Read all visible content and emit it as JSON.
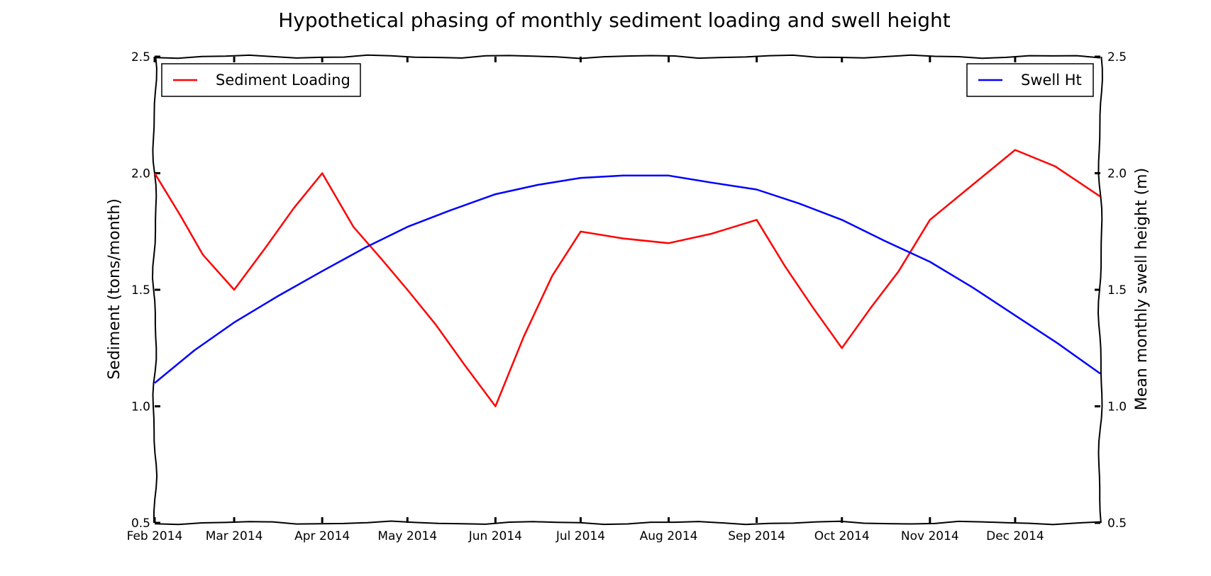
{
  "chart_data": {
    "type": "line",
    "title": "Hypothetical phasing of monthly sediment loading and swell height",
    "ylabel_left": "Sediment (tons/month)",
    "ylabel_right": "Mean monthly swell height (m)",
    "xlim": [
      "2014-02-01",
      "2014-12-31"
    ],
    "ylim": [
      0.5,
      2.5
    ],
    "y_ticks": [
      "0.5",
      "1.0",
      "1.5",
      "2.0",
      "2.5"
    ],
    "x_ticks": [
      {
        "date": "2014-02-01",
        "label": "Feb 2014"
      },
      {
        "date": "2014-03-01",
        "label": "Mar 2014"
      },
      {
        "date": "2014-04-01",
        "label": "Apr 2014"
      },
      {
        "date": "2014-05-01",
        "label": "May 2014"
      },
      {
        "date": "2014-06-01",
        "label": "Jun 2014"
      },
      {
        "date": "2014-07-01",
        "label": "Jul 2014"
      },
      {
        "date": "2014-08-01",
        "label": "Aug 2014"
      },
      {
        "date": "2014-09-01",
        "label": "Sep 2014"
      },
      {
        "date": "2014-10-01",
        "label": "Oct 2014"
      },
      {
        "date": "2014-11-01",
        "label": "Nov 2014"
      },
      {
        "date": "2014-12-01",
        "label": "Dec 2014"
      }
    ],
    "series": [
      {
        "name": "Sediment Loading",
        "axis": "left",
        "color": "#ff0000",
        "legend_position": "upper-left",
        "points": [
          [
            "2014-02-01",
            2.0
          ],
          [
            "2014-02-10",
            1.82
          ],
          [
            "2014-02-18",
            1.65
          ],
          [
            "2014-03-01",
            1.5
          ],
          [
            "2014-03-12",
            1.68
          ],
          [
            "2014-03-22",
            1.85
          ],
          [
            "2014-04-01",
            2.0
          ],
          [
            "2014-04-12",
            1.77
          ],
          [
            "2014-04-22",
            1.63
          ],
          [
            "2014-05-01",
            1.5
          ],
          [
            "2014-05-11",
            1.35
          ],
          [
            "2014-05-21",
            1.18
          ],
          [
            "2014-06-01",
            1.0
          ],
          [
            "2014-06-11",
            1.3
          ],
          [
            "2014-06-21",
            1.56
          ],
          [
            "2014-07-01",
            1.75
          ],
          [
            "2014-07-16",
            1.72
          ],
          [
            "2014-08-01",
            1.7
          ],
          [
            "2014-08-16",
            1.74
          ],
          [
            "2014-09-01",
            1.8
          ],
          [
            "2014-09-11",
            1.6
          ],
          [
            "2014-09-21",
            1.42
          ],
          [
            "2014-10-01",
            1.25
          ],
          [
            "2014-10-11",
            1.42
          ],
          [
            "2014-10-21",
            1.58
          ],
          [
            "2014-11-01",
            1.8
          ],
          [
            "2014-11-16",
            1.95
          ],
          [
            "2014-12-01",
            2.1
          ],
          [
            "2014-12-15",
            2.03
          ],
          [
            "2014-12-31",
            1.9
          ]
        ]
      },
      {
        "name": "Swell Ht",
        "axis": "right",
        "color": "#0000ff",
        "legend_position": "upper-right",
        "points": [
          [
            "2014-02-01",
            1.1
          ],
          [
            "2014-02-15",
            1.24
          ],
          [
            "2014-03-01",
            1.36
          ],
          [
            "2014-03-16",
            1.47
          ],
          [
            "2014-04-01",
            1.58
          ],
          [
            "2014-04-16",
            1.68
          ],
          [
            "2014-05-01",
            1.77
          ],
          [
            "2014-05-16",
            1.84
          ],
          [
            "2014-06-01",
            1.91
          ],
          [
            "2014-06-16",
            1.95
          ],
          [
            "2014-07-01",
            1.98
          ],
          [
            "2014-07-16",
            1.99
          ],
          [
            "2014-08-01",
            1.99
          ],
          [
            "2014-08-16",
            1.96
          ],
          [
            "2014-09-01",
            1.93
          ],
          [
            "2014-09-16",
            1.87
          ],
          [
            "2014-10-01",
            1.8
          ],
          [
            "2014-10-16",
            1.71
          ],
          [
            "2014-11-01",
            1.62
          ],
          [
            "2014-11-16",
            1.51
          ],
          [
            "2014-12-01",
            1.39
          ],
          [
            "2014-12-16",
            1.27
          ],
          [
            "2014-12-31",
            1.14
          ]
        ]
      }
    ],
    "grid": false,
    "style": "xkcd"
  }
}
